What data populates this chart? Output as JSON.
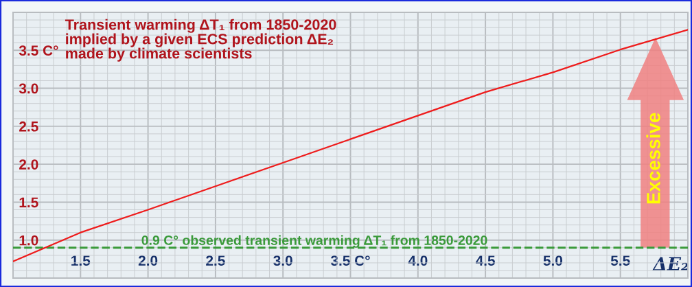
{
  "chart_data": {
    "type": "line",
    "title": "Transient warming ΔT₁ from 1850-2020\nimplied by a given ECS prediction ΔE₂\nmade by climate scientists",
    "xlabel": "ΔE₂",
    "x": [
      1.0,
      1.5,
      2.0,
      2.5,
      3.0,
      3.5,
      4.0,
      4.5,
      5.0,
      5.5,
      6.0
    ],
    "series": [
      {
        "color": "#ee1c1c",
        "values": [
          0.72,
          1.1,
          1.4,
          1.71,
          2.02,
          2.33,
          2.64,
          2.95,
          3.21,
          3.51,
          3.77
        ]
      }
    ],
    "xlim": [
      1.0,
      6.0
    ],
    "ylim": [
      0.5,
      4.0
    ],
    "xticks": [
      1.5,
      {
        "value": 2,
        "label": "2.0"
      },
      2.5,
      {
        "value": 3,
        "label": "3.0"
      },
      {
        "value": 3.5,
        "label": "3.5 C°"
      },
      {
        "value": 4,
        "label": "4.0"
      },
      4.5,
      {
        "value": 5,
        "label": "5.0"
      },
      5.5
    ],
    "yticks": [
      {
        "value": 1,
        "label": "1.0"
      },
      1.5,
      {
        "value": 2,
        "label": "2.0"
      },
      2.5,
      {
        "value": 3,
        "label": "3.0"
      },
      {
        "value": 3.5,
        "label": "3.5 C°"
      }
    ],
    "ref_lines": [
      {
        "axis": "y",
        "value": 0.9,
        "label": "0.9 C° observed transient warming ΔT₁ from 1850-2020",
        "color": "#3a9a3a",
        "line_style": "dashed"
      }
    ],
    "annotations": [
      "Excessive"
    ],
    "grid": true,
    "marker": "none",
    "line_style": "solid"
  }
}
